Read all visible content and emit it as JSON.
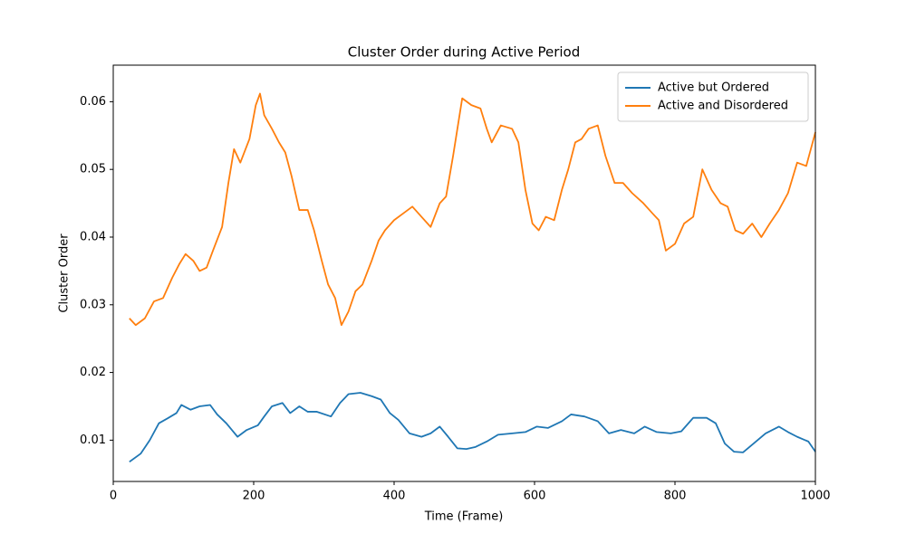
{
  "chart_data": {
    "type": "line",
    "title": "Cluster Order during Active Period",
    "xlabel": "Time (Frame)",
    "ylabel": "Cluster Order",
    "xlim": [
      0,
      1000
    ],
    "xticks": [
      0,
      200,
      400,
      600,
      800,
      1000
    ],
    "ylim": [
      0.0039,
      0.0654
    ],
    "yticks": [
      0.01,
      0.02,
      0.03,
      0.04,
      0.05,
      0.06
    ],
    "legend": "upper right",
    "series": [
      {
        "name": "Active but Ordered",
        "color": "#1f77b4",
        "x": [
          23,
          39,
          52,
          65,
          77,
          90,
          97,
          110,
          123,
          138,
          148,
          161,
          177,
          190,
          206,
          215,
          226,
          241,
          252,
          265,
          277,
          290,
          310,
          323,
          335,
          352,
          368,
          381,
          394,
          406,
          422,
          439,
          452,
          465,
          477,
          490,
          503,
          516,
          532,
          548,
          568,
          587,
          603,
          619,
          639,
          652,
          671,
          690,
          706,
          723,
          742,
          757,
          774,
          794,
          809,
          826,
          845,
          858,
          871,
          884,
          897,
          912,
          929,
          948,
          961,
          974,
          990,
          1000
        ],
        "values": [
          0.0068,
          0.008,
          0.01,
          0.0125,
          0.0132,
          0.014,
          0.0152,
          0.0145,
          0.015,
          0.0152,
          0.0138,
          0.0125,
          0.0105,
          0.0115,
          0.0122,
          0.0135,
          0.015,
          0.0155,
          0.014,
          0.015,
          0.0142,
          0.0142,
          0.0135,
          0.0155,
          0.0168,
          0.017,
          0.0165,
          0.016,
          0.014,
          0.013,
          0.011,
          0.0105,
          0.011,
          0.012,
          0.0105,
          0.0088,
          0.0087,
          0.009,
          0.0098,
          0.0108,
          0.011,
          0.0112,
          0.012,
          0.0118,
          0.0128,
          0.0138,
          0.0135,
          0.0128,
          0.011,
          0.0115,
          0.011,
          0.012,
          0.0112,
          0.011,
          0.0113,
          0.0133,
          0.0133,
          0.0125,
          0.0095,
          0.0083,
          0.0082,
          0.0095,
          0.011,
          0.012,
          0.0112,
          0.0105,
          0.0098,
          0.0083
        ]
      },
      {
        "name": "Active and Disordered",
        "color": "#ff7f0e",
        "x": [
          23,
          32,
          45,
          58,
          71,
          84,
          94,
          103,
          114,
          123,
          133,
          142,
          155,
          164,
          172,
          181,
          194,
          203,
          209,
          215,
          226,
          236,
          245,
          254,
          265,
          277,
          286,
          297,
          306,
          316,
          325,
          335,
          345,
          355,
          368,
          378,
          387,
          400,
          413,
          426,
          439,
          452,
          465,
          474,
          484,
          497,
          510,
          523,
          532,
          539,
          552,
          568,
          577,
          587,
          597,
          606,
          616,
          628,
          639,
          648,
          658,
          667,
          677,
          690,
          701,
          714,
          726,
          739,
          755,
          768,
          777,
          787,
          800,
          813,
          826,
          839,
          852,
          865,
          875,
          886,
          897,
          910,
          923,
          935,
          948,
          961,
          974,
          987,
          1000
        ],
        "values": [
          0.028,
          0.027,
          0.028,
          0.0305,
          0.031,
          0.034,
          0.036,
          0.0375,
          0.0365,
          0.035,
          0.0355,
          0.038,
          0.0415,
          0.048,
          0.053,
          0.051,
          0.0545,
          0.0595,
          0.0612,
          0.058,
          0.056,
          0.054,
          0.0525,
          0.049,
          0.044,
          0.044,
          0.041,
          0.0365,
          0.033,
          0.031,
          0.027,
          0.029,
          0.032,
          0.033,
          0.0365,
          0.0395,
          0.041,
          0.0425,
          0.0435,
          0.0445,
          0.043,
          0.0415,
          0.045,
          0.046,
          0.052,
          0.0605,
          0.0595,
          0.059,
          0.056,
          0.054,
          0.0565,
          0.056,
          0.054,
          0.047,
          0.042,
          0.041,
          0.043,
          0.0425,
          0.047,
          0.05,
          0.054,
          0.0545,
          0.056,
          0.0565,
          0.052,
          0.048,
          0.048,
          0.0465,
          0.045,
          0.0435,
          0.0425,
          0.038,
          0.039,
          0.042,
          0.043,
          0.05,
          0.047,
          0.045,
          0.0445,
          0.041,
          0.0405,
          0.042,
          0.04,
          0.042,
          0.044,
          0.0465,
          0.051,
          0.0505,
          0.0555
        ]
      }
    ]
  }
}
